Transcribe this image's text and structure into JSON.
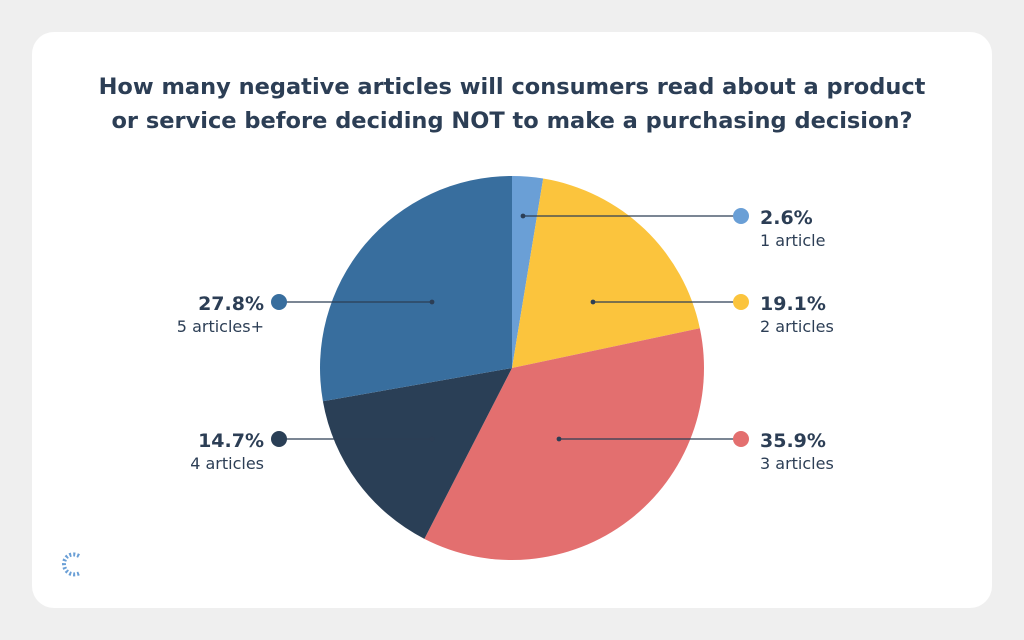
{
  "title_lines": [
    "How many negative articles will consumers read about a product",
    "or service before deciding NOT to make a purchasing decision?"
  ],
  "colors": {
    "slice_1": "#6a9fd6",
    "slice_2": "#fbc43d",
    "slice_3": "#e36f6f",
    "slice_4": "#2a3f56",
    "slice_5": "#386e9e",
    "text": "#2c3e55",
    "background": "#efefef",
    "card": "#ffffff"
  },
  "chart_data": {
    "type": "pie",
    "title": "How many negative articles will consumers read about a product or service before deciding NOT to make a purchasing decision?",
    "slices": [
      {
        "label": "1 article",
        "value": 2.6,
        "value_label": "2.6%"
      },
      {
        "label": "2 articles",
        "value": 19.1,
        "value_label": "19.1%"
      },
      {
        "label": "3 articles",
        "value": 35.9,
        "value_label": "35.9%"
      },
      {
        "label": "4 articles",
        "value": 14.7,
        "value_label": "14.7%"
      },
      {
        "label": "5 articles+",
        "value": 27.8,
        "value_label": "27.8%"
      }
    ]
  }
}
